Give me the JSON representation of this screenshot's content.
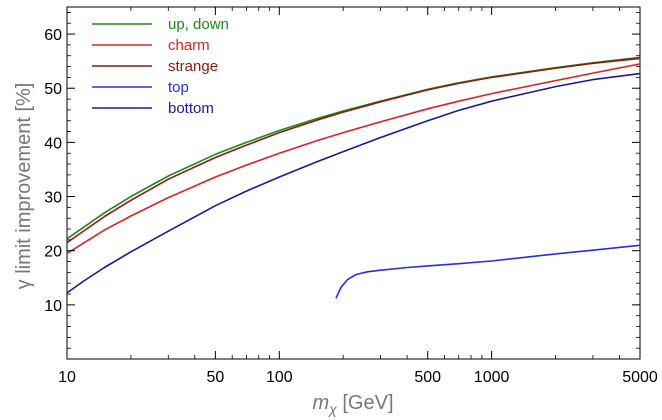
{
  "chart_data": {
    "type": "line",
    "xlabel": "m",
    "xlabel_sub": "χ",
    "xlabel_unit": " [GeV]",
    "ylabel": "γ limit improvement [%]",
    "xscale": "log",
    "xlim": [
      10,
      5000
    ],
    "ylim": [
      0,
      65
    ],
    "xticks": [
      10,
      50,
      100,
      500,
      1000,
      5000
    ],
    "xtick_labels": [
      "10",
      "50",
      "100",
      "500",
      "1000",
      "5000"
    ],
    "yticks": [
      10,
      20,
      30,
      40,
      50,
      60
    ],
    "ytick_labels": [
      "10",
      "20",
      "30",
      "40",
      "50",
      "60"
    ],
    "grid": false,
    "legend_position": "top-left",
    "series": [
      {
        "name": "up, down",
        "color": "#1a8a1a",
        "x": [
          10,
          15,
          20,
          30,
          50,
          70,
          100,
          150,
          200,
          300,
          500,
          700,
          1000,
          2000,
          3000,
          5000
        ],
        "y": [
          22.2,
          27.0,
          30.0,
          33.8,
          37.8,
          40.0,
          42.2,
          44.4,
          45.8,
          47.6,
          49.8,
          51.0,
          52.1,
          53.8,
          54.7,
          55.7
        ]
      },
      {
        "name": "charm",
        "color": "#dd2222",
        "x": [
          10,
          15,
          20,
          30,
          50,
          70,
          100,
          150,
          200,
          300,
          500,
          700,
          1000,
          2000,
          3000,
          5000
        ],
        "y": [
          19.5,
          23.8,
          26.4,
          29.8,
          33.6,
          35.8,
          38.0,
          40.3,
          41.8,
          43.8,
          46.2,
          47.6,
          49.0,
          51.4,
          52.8,
          54.5
        ]
      },
      {
        "name": "strange",
        "color": "#8b1a10",
        "x": [
          10,
          15,
          20,
          30,
          50,
          70,
          100,
          150,
          200,
          300,
          500,
          700,
          1000,
          2000,
          3000,
          5000
        ],
        "y": [
          21.5,
          26.3,
          29.3,
          33.2,
          37.2,
          39.5,
          41.8,
          44.1,
          45.6,
          47.5,
          49.7,
          50.9,
          52.0,
          53.7,
          54.6,
          55.5
        ]
      },
      {
        "name": "top",
        "color": "#2233dd",
        "x": [
          185,
          195,
          210,
          230,
          260,
          300,
          400,
          500,
          700,
          1000,
          2000,
          3000,
          5000
        ],
        "y": [
          11.2,
          13.2,
          14.7,
          15.6,
          16.1,
          16.4,
          16.9,
          17.2,
          17.6,
          18.1,
          19.4,
          20.1,
          21.0
        ]
      },
      {
        "name": "bottom",
        "color": "#1a1a99",
        "x": [
          10,
          12,
          15,
          20,
          30,
          50,
          70,
          100,
          150,
          200,
          300,
          500,
          700,
          1000,
          2000,
          3000,
          5000
        ],
        "y": [
          12.2,
          14.4,
          16.9,
          19.8,
          23.6,
          28.3,
          31.0,
          33.6,
          36.4,
          38.3,
          40.9,
          44.0,
          45.9,
          47.6,
          50.3,
          51.6,
          52.7
        ]
      }
    ]
  }
}
